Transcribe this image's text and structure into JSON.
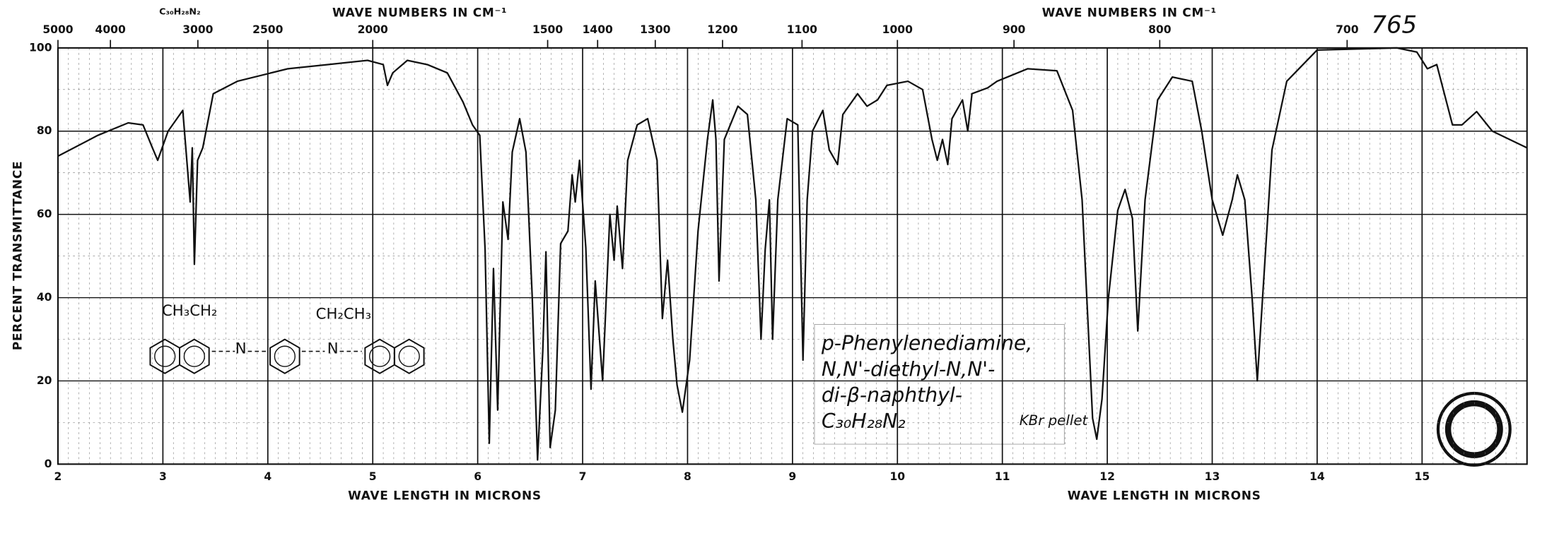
{
  "chart_data": {
    "type": "line",
    "y_label": "PERCENT TRANSMITTANCE",
    "x_label": "WAVE LENGTH IN MICRONS",
    "top_axis_label": "WAVE NUMBERS IN CM⁻¹",
    "top_formula": "C₃₀H₂₈N₂",
    "catalog_number": "765",
    "xlim": [
      2,
      16
    ],
    "xticks": [
      2,
      3,
      4,
      5,
      6,
      7,
      8,
      9,
      10,
      11,
      12,
      13,
      14,
      15
    ],
    "top_ticks": [
      5000,
      4000,
      3000,
      2500,
      2000,
      1500,
      1400,
      1300,
      1200,
      1100,
      1000,
      900,
      800,
      700
    ],
    "ylim": [
      0,
      100
    ],
    "yticks": [
      0,
      20,
      40,
      60,
      80,
      100
    ],
    "grid": true,
    "color": "#111111",
    "x": [
      2.0,
      2.38,
      2.67,
      2.81,
      2.9,
      2.95,
      3.05,
      3.19,
      3.26,
      3.28,
      3.3,
      3.33,
      3.38,
      3.48,
      3.71,
      4.19,
      4.57,
      4.95,
      5.1,
      5.14,
      5.19,
      5.33,
      5.52,
      5.71,
      5.86,
      5.95,
      6.02,
      6.07,
      6.11,
      6.15,
      6.19,
      6.24,
      6.29,
      6.33,
      6.4,
      6.46,
      6.52,
      6.57,
      6.62,
      6.65,
      6.69,
      6.74,
      6.79,
      6.86,
      6.9,
      6.93,
      6.97,
      7.03,
      7.08,
      7.12,
      7.19,
      7.26,
      7.3,
      7.33,
      7.38,
      7.43,
      7.52,
      7.62,
      7.71,
      7.76,
      7.81,
      7.86,
      7.9,
      7.95,
      8.02,
      8.1,
      8.19,
      8.24,
      8.27,
      8.3,
      8.35,
      8.48,
      8.57,
      8.65,
      8.7,
      8.74,
      8.78,
      8.81,
      8.86,
      8.95,
      9.05,
      9.1,
      9.14,
      9.19,
      9.29,
      9.35,
      9.43,
      9.48,
      9.62,
      9.71,
      9.81,
      9.9,
      10.1,
      10.24,
      10.33,
      10.38,
      10.43,
      10.48,
      10.52,
      10.62,
      10.67,
      10.71,
      10.86,
      10.95,
      11.24,
      11.52,
      11.67,
      11.76,
      11.86,
      11.9,
      11.95,
      12.01,
      12.1,
      12.17,
      12.24,
      12.29,
      12.36,
      12.48,
      12.62,
      12.81,
      12.9,
      13.0,
      13.1,
      13.19,
      13.24,
      13.31,
      13.38,
      13.43,
      13.48,
      13.57,
      13.71,
      14.0,
      14.76,
      14.95,
      15.05,
      15.14,
      15.29,
      15.38,
      15.52,
      15.67,
      16.0
    ],
    "values": [
      74,
      79,
      82,
      81.5,
      76,
      73,
      80,
      85,
      63,
      76,
      48,
      73,
      76,
      89,
      92,
      95,
      96,
      97,
      96,
      91,
      94,
      97,
      96,
      94,
      87,
      81.5,
      79,
      51.6,
      5,
      47,
      13,
      63,
      54,
      75,
      83,
      75,
      40,
      1,
      27,
      51,
      4,
      13,
      53,
      56,
      69.5,
      63,
      73,
      52,
      18,
      44,
      20,
      60,
      49,
      62,
      47,
      73,
      81.5,
      83,
      73,
      35,
      49,
      30,
      19,
      12.5,
      25,
      56,
      78,
      87.5,
      78,
      44,
      78,
      86,
      84,
      63.5,
      30,
      51.6,
      63.5,
      30,
      63.5,
      83,
      81.5,
      25,
      63.5,
      80,
      85,
      75.5,
      72,
      84,
      89,
      86,
      87.5,
      91,
      92,
      90,
      78,
      73,
      78,
      72,
      83,
      87.5,
      80,
      89,
      90.4,
      92,
      95,
      94.5,
      85,
      63.5,
      11,
      6,
      15.6,
      39.6,
      61,
      66,
      59,
      32,
      63.5,
      87.5,
      93,
      92,
      80,
      63.5,
      55,
      63.5,
      69.5,
      63.5,
      40,
      20,
      40,
      75.5,
      92,
      99.5,
      100,
      99,
      95,
      96,
      81.5,
      81.5,
      84.7,
      80,
      76
    ],
    "structure": {
      "left_group": "CH₃CH₂",
      "right_group": "CH₂CH₃",
      "left_n": "N",
      "right_n": "N"
    },
    "annotation": [
      "p-Phenylenediamine,",
      "N,N'-diethyl-N,N'-",
      "di-β-naphthyl-",
      "C₃₀H₂₈N₂"
    ],
    "sample_note": "KBr pellet"
  }
}
